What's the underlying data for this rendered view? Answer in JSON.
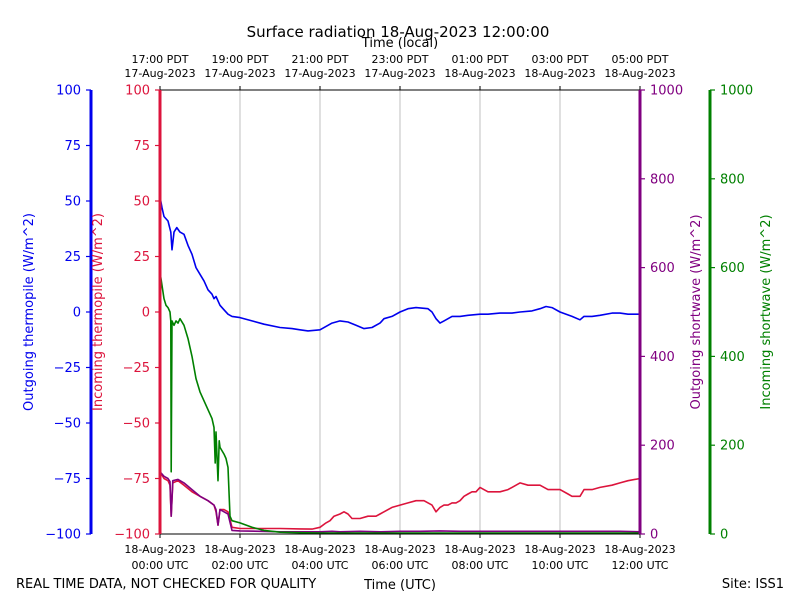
{
  "chart_data": {
    "type": "line",
    "title": "Surface radiation 18-Aug-2023 12:00:00",
    "top_xlabel": "Time (local)",
    "bottom_xlabel": "Time (UTC)",
    "footer_left": "REAL TIME DATA, NOT CHECKED FOR QUALITY",
    "footer_right": "Site: ISS1",
    "x_range_hours": [
      0,
      12
    ],
    "x_ticks_hours": [
      0,
      2,
      4,
      6,
      8,
      10,
      12
    ],
    "utc_tick_labels": [
      [
        "18-Aug-2023",
        "00:00 UTC"
      ],
      [
        "18-Aug-2023",
        "02:00 UTC"
      ],
      [
        "18-Aug-2023",
        "04:00 UTC"
      ],
      [
        "18-Aug-2023",
        "06:00 UTC"
      ],
      [
        "18-Aug-2023",
        "08:00 UTC"
      ],
      [
        "18-Aug-2023",
        "10:00 UTC"
      ],
      [
        "18-Aug-2023",
        "12:00 UTC"
      ]
    ],
    "local_tick_labels": [
      [
        "17:00 PDT",
        "17-Aug-2023"
      ],
      [
        "19:00 PDT",
        "17-Aug-2023"
      ],
      [
        "21:00 PDT",
        "17-Aug-2023"
      ],
      [
        "23:00 PDT",
        "17-Aug-2023"
      ],
      [
        "01:00 PDT",
        "18-Aug-2023"
      ],
      [
        "03:00 PDT",
        "18-Aug-2023"
      ],
      [
        "05:00 PDT",
        "18-Aug-2023"
      ]
    ],
    "grid": "vertical",
    "axes": [
      {
        "id": "ax-out-thermo",
        "label": "Outgoing thermopile (W/m^2)",
        "color": "#0000ee",
        "range": [
          -100,
          100
        ],
        "ticks": [
          -100,
          -75,
          -50,
          -25,
          0,
          25,
          50,
          75,
          100
        ],
        "tick_labels": [
          "−100",
          "−75",
          "−50",
          "−25",
          "0",
          "25",
          "50",
          "75",
          "100"
        ]
      },
      {
        "id": "ax-in-thermo",
        "label": "Incoming thermopile (W/m^2)",
        "color": "#dc143c",
        "range": [
          -100,
          100
        ],
        "ticks": [
          -100,
          -75,
          -50,
          -25,
          0,
          25,
          50,
          75,
          100
        ],
        "tick_labels": [
          "−100",
          "−75",
          "−50",
          "−25",
          "0",
          "25",
          "50",
          "75",
          "100"
        ]
      },
      {
        "id": "ax-out-sw",
        "label": "Outgoing shortwave (W/m^2)",
        "color": "#800080",
        "range": [
          0,
          1000
        ],
        "ticks": [
          0,
          200,
          400,
          600,
          800,
          1000
        ],
        "tick_labels": [
          "0",
          "200",
          "400",
          "600",
          "800",
          "1000"
        ]
      },
      {
        "id": "ax-in-sw",
        "label": "Incoming shortwave (W/m^2)",
        "color": "#008000",
        "range": [
          0,
          1000
        ],
        "ticks": [
          0,
          200,
          400,
          600,
          800,
          1000
        ],
        "tick_labels": [
          "0",
          "200",
          "400",
          "600",
          "800",
          "1000"
        ]
      }
    ],
    "series": [
      {
        "name": "Outgoing thermopile",
        "axis": "ax-out-thermo",
        "color": "#0000ee",
        "points": [
          [
            0,
            52
          ],
          [
            0.05,
            47
          ],
          [
            0.1,
            43
          ],
          [
            0.2,
            41
          ],
          [
            0.27,
            36
          ],
          [
            0.3,
            28
          ],
          [
            0.35,
            36
          ],
          [
            0.42,
            38
          ],
          [
            0.5,
            36
          ],
          [
            0.6,
            35
          ],
          [
            0.7,
            30
          ],
          [
            0.8,
            26
          ],
          [
            0.9,
            20
          ],
          [
            1.0,
            17
          ],
          [
            1.1,
            14
          ],
          [
            1.2,
            10
          ],
          [
            1.3,
            8
          ],
          [
            1.35,
            6
          ],
          [
            1.4,
            7
          ],
          [
            1.5,
            3
          ],
          [
            1.6,
            1
          ],
          [
            1.7,
            -1
          ],
          [
            1.8,
            -2
          ],
          [
            2.0,
            -2.5
          ],
          [
            2.3,
            -4
          ],
          [
            2.6,
            -5.5
          ],
          [
            3.0,
            -7
          ],
          [
            3.3,
            -7.5
          ],
          [
            3.5,
            -8
          ],
          [
            3.7,
            -8.5
          ],
          [
            4.0,
            -8
          ],
          [
            4.2,
            -6
          ],
          [
            4.3,
            -5
          ],
          [
            4.5,
            -4
          ],
          [
            4.7,
            -4.5
          ],
          [
            4.9,
            -6
          ],
          [
            5.1,
            -7.5
          ],
          [
            5.3,
            -7
          ],
          [
            5.5,
            -5
          ],
          [
            5.6,
            -3
          ],
          [
            5.8,
            -2
          ],
          [
            6.0,
            0
          ],
          [
            6.2,
            1.5
          ],
          [
            6.4,
            2
          ],
          [
            6.7,
            1.5
          ],
          [
            6.8,
            0
          ],
          [
            6.9,
            -3
          ],
          [
            7.0,
            -5
          ],
          [
            7.1,
            -4
          ],
          [
            7.3,
            -2
          ],
          [
            7.5,
            -2
          ],
          [
            7.7,
            -1.5
          ],
          [
            8.0,
            -1
          ],
          [
            8.2,
            -1
          ],
          [
            8.5,
            -0.5
          ],
          [
            8.8,
            -0.5
          ],
          [
            9.0,
            0
          ],
          [
            9.3,
            0.5
          ],
          [
            9.5,
            1.5
          ],
          [
            9.65,
            2.5
          ],
          [
            9.8,
            2
          ],
          [
            10.0,
            0
          ],
          [
            10.3,
            -2
          ],
          [
            10.5,
            -3.5
          ],
          [
            10.6,
            -2
          ],
          [
            10.8,
            -2
          ],
          [
            11.0,
            -1.5
          ],
          [
            11.3,
            -0.5
          ],
          [
            11.5,
            -0.5
          ],
          [
            11.7,
            -1
          ],
          [
            12.0,
            -1
          ]
        ]
      },
      {
        "name": "Incoming thermopile",
        "axis": "ax-in-thermo",
        "color": "#dc143c",
        "points": [
          [
            0,
            -72
          ],
          [
            0.1,
            -75
          ],
          [
            0.2,
            -76
          ],
          [
            0.25,
            -78
          ],
          [
            0.28,
            -92
          ],
          [
            0.32,
            -77
          ],
          [
            0.45,
            -76
          ],
          [
            0.6,
            -78
          ],
          [
            0.8,
            -81
          ],
          [
            1.0,
            -83
          ],
          [
            1.2,
            -85
          ],
          [
            1.35,
            -87
          ],
          [
            1.4,
            -90
          ],
          [
            1.45,
            -96
          ],
          [
            1.5,
            -89
          ],
          [
            1.6,
            -89
          ],
          [
            1.7,
            -90
          ],
          [
            1.8,
            -97
          ],
          [
            2.0,
            -97.5
          ],
          [
            2.5,
            -97.5
          ],
          [
            3.0,
            -97.5
          ],
          [
            3.5,
            -97.7
          ],
          [
            3.8,
            -97.8
          ],
          [
            4.0,
            -97
          ],
          [
            4.15,
            -95
          ],
          [
            4.25,
            -94
          ],
          [
            4.35,
            -92
          ],
          [
            4.5,
            -91
          ],
          [
            4.6,
            -90
          ],
          [
            4.7,
            -91
          ],
          [
            4.8,
            -93
          ],
          [
            5.0,
            -93
          ],
          [
            5.2,
            -92
          ],
          [
            5.4,
            -92
          ],
          [
            5.5,
            -91
          ],
          [
            5.6,
            -90
          ],
          [
            5.8,
            -88
          ],
          [
            6.0,
            -87
          ],
          [
            6.2,
            -86
          ],
          [
            6.4,
            -85
          ],
          [
            6.6,
            -85
          ],
          [
            6.8,
            -87
          ],
          [
            6.9,
            -90
          ],
          [
            7.0,
            -88
          ],
          [
            7.1,
            -87
          ],
          [
            7.2,
            -87
          ],
          [
            7.3,
            -86
          ],
          [
            7.4,
            -86
          ],
          [
            7.5,
            -85
          ],
          [
            7.6,
            -83
          ],
          [
            7.7,
            -82
          ],
          [
            7.8,
            -81
          ],
          [
            7.9,
            -81
          ],
          [
            8.0,
            -79
          ],
          [
            8.2,
            -81
          ],
          [
            8.5,
            -81
          ],
          [
            8.7,
            -80
          ],
          [
            8.8,
            -79
          ],
          [
            9.0,
            -77
          ],
          [
            9.2,
            -78
          ],
          [
            9.5,
            -78
          ],
          [
            9.7,
            -80
          ],
          [
            9.8,
            -80
          ],
          [
            10.0,
            -80
          ],
          [
            10.2,
            -82
          ],
          [
            10.3,
            -83
          ],
          [
            10.5,
            -83
          ],
          [
            10.6,
            -80
          ],
          [
            10.8,
            -80
          ],
          [
            11.0,
            -79
          ],
          [
            11.3,
            -78
          ],
          [
            11.5,
            -77
          ],
          [
            11.7,
            -76
          ],
          [
            12.0,
            -75
          ]
        ]
      },
      {
        "name": "Outgoing shortwave",
        "axis": "ax-out-sw",
        "color": "#800080",
        "points": [
          [
            0,
            140
          ],
          [
            0.1,
            130
          ],
          [
            0.2,
            125
          ],
          [
            0.25,
            118
          ],
          [
            0.28,
            40
          ],
          [
            0.32,
            120
          ],
          [
            0.45,
            123
          ],
          [
            0.6,
            115
          ],
          [
            0.8,
            100
          ],
          [
            1.0,
            85
          ],
          [
            1.2,
            75
          ],
          [
            1.35,
            65
          ],
          [
            1.4,
            55
          ],
          [
            1.45,
            20
          ],
          [
            1.5,
            55
          ],
          [
            1.6,
            50
          ],
          [
            1.7,
            45
          ],
          [
            1.8,
            8
          ],
          [
            2.0,
            7
          ],
          [
            2.5,
            6
          ],
          [
            3.0,
            5
          ],
          [
            3.5,
            5
          ],
          [
            4.0,
            5
          ],
          [
            4.3,
            6
          ],
          [
            4.5,
            5
          ],
          [
            5.0,
            6
          ],
          [
            5.5,
            5
          ],
          [
            6.0,
            6
          ],
          [
            6.5,
            6
          ],
          [
            7.0,
            7
          ],
          [
            7.5,
            6
          ],
          [
            8.0,
            6
          ],
          [
            8.5,
            6
          ],
          [
            9.0,
            6
          ],
          [
            9.5,
            6
          ],
          [
            10.0,
            6
          ],
          [
            10.5,
            6
          ],
          [
            11.0,
            6
          ],
          [
            11.5,
            6
          ],
          [
            12.0,
            5
          ]
        ]
      },
      {
        "name": "Incoming shortwave",
        "axis": "ax-in-sw",
        "color": "#008000",
        "points": [
          [
            0,
            590
          ],
          [
            0.05,
            560
          ],
          [
            0.1,
            530
          ],
          [
            0.15,
            515
          ],
          [
            0.2,
            510
          ],
          [
            0.25,
            500
          ],
          [
            0.27,
            480
          ],
          [
            0.28,
            140
          ],
          [
            0.3,
            480
          ],
          [
            0.35,
            470
          ],
          [
            0.4,
            480
          ],
          [
            0.45,
            475
          ],
          [
            0.5,
            485
          ],
          [
            0.6,
            470
          ],
          [
            0.7,
            440
          ],
          [
            0.8,
            400
          ],
          [
            0.9,
            350
          ],
          [
            1.0,
            320
          ],
          [
            1.1,
            300
          ],
          [
            1.2,
            280
          ],
          [
            1.3,
            260
          ],
          [
            1.35,
            240
          ],
          [
            1.38,
            160
          ],
          [
            1.4,
            230
          ],
          [
            1.45,
            120
          ],
          [
            1.48,
            210
          ],
          [
            1.5,
            195
          ],
          [
            1.6,
            180
          ],
          [
            1.65,
            170
          ],
          [
            1.7,
            150
          ],
          [
            1.75,
            40
          ],
          [
            1.8,
            30
          ],
          [
            2.0,
            25
          ],
          [
            2.3,
            15
          ],
          [
            2.6,
            8
          ],
          [
            3.0,
            4
          ],
          [
            3.5,
            3
          ],
          [
            4.0,
            2
          ],
          [
            5.0,
            2
          ],
          [
            6.0,
            2
          ],
          [
            7.0,
            2
          ],
          [
            8.0,
            2
          ],
          [
            9.0,
            2
          ],
          [
            10.0,
            2
          ],
          [
            11.0,
            2
          ],
          [
            12.0,
            2
          ]
        ]
      }
    ]
  }
}
